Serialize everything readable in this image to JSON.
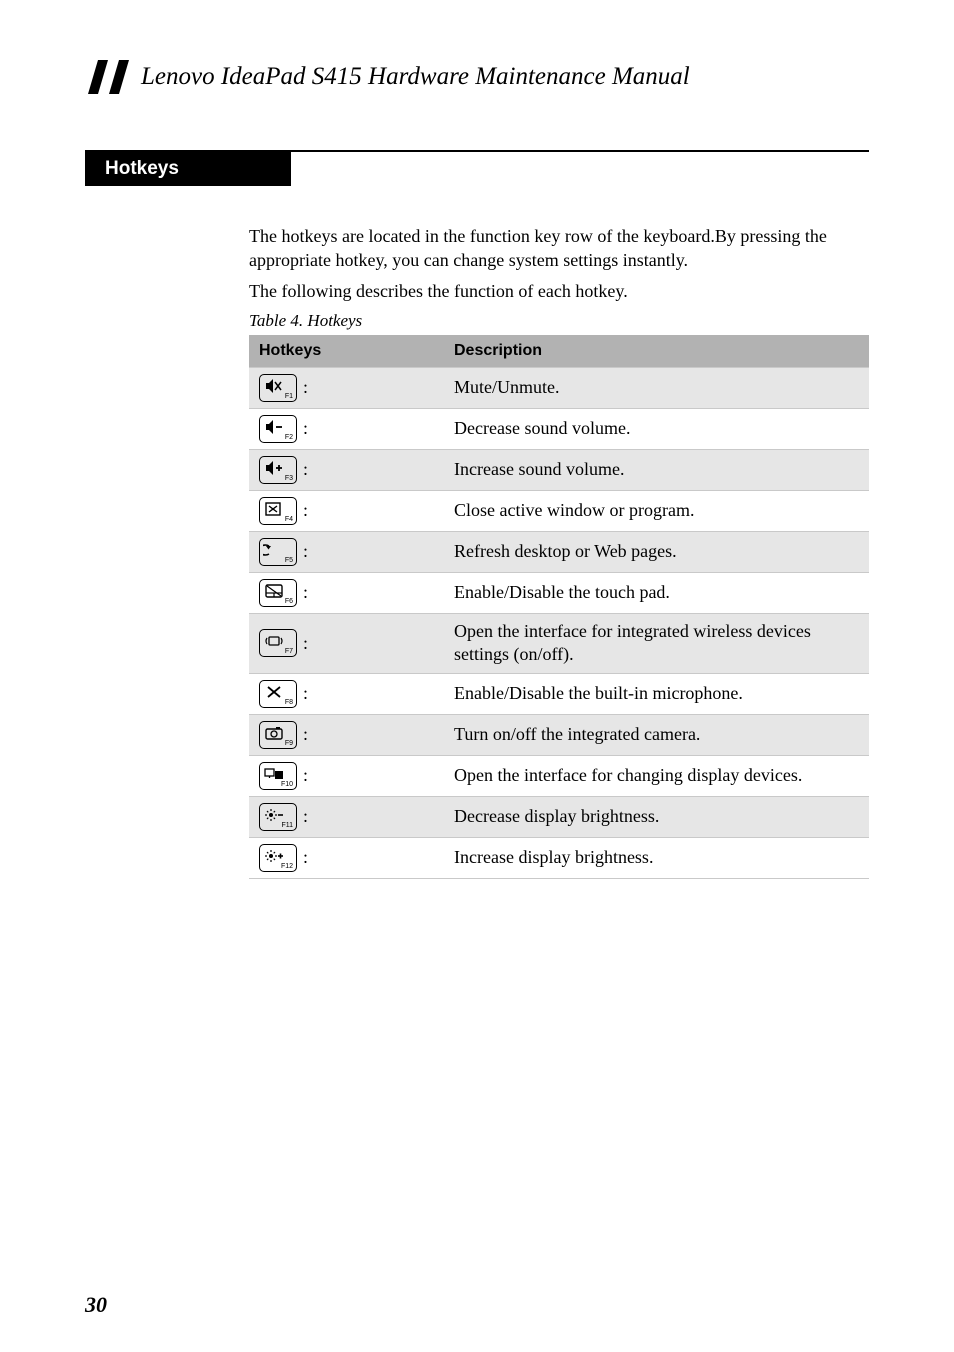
{
  "header": {
    "title": "Lenovo IdeaPad S415 Hardware Maintenance Manual"
  },
  "section": {
    "title": "Hotkeys"
  },
  "intro": {
    "p1": "The hotkeys are located in the function key row of the keyboard.By pressing the appropriate hotkey, you can change system settings instantly.",
    "p2": "The following describes the function of each hotkey.",
    "caption": "Table 4. Hotkeys"
  },
  "table": {
    "columns": {
      "c0": "Hotkeys",
      "c1": "Description"
    },
    "header_bg": "#b2b2b2",
    "row_bg_odd": "#e6e6e6",
    "row_bg_even": "#ffffff",
    "border_color": "#c9c9c9",
    "rows": [
      {
        "fn": "F1",
        "icon": "mute",
        "desc": "Mute/Unmute."
      },
      {
        "fn": "F2",
        "icon": "vol-down",
        "desc": "Decrease sound volume."
      },
      {
        "fn": "F3",
        "icon": "vol-up",
        "desc": "Increase sound volume."
      },
      {
        "fn": "F4",
        "icon": "close-window",
        "desc": "Close active window or program."
      },
      {
        "fn": "F5",
        "icon": "refresh",
        "desc": "Refresh desktop or Web pages."
      },
      {
        "fn": "F6",
        "icon": "touchpad",
        "desc": "Enable/Disable the touch pad."
      },
      {
        "fn": "F7",
        "icon": "wireless",
        "desc": "Open the interface for integrated wireless devices settings (on/off)."
      },
      {
        "fn": "F8",
        "icon": "mic-off",
        "desc": "Enable/Disable the built-in microphone."
      },
      {
        "fn": "F9",
        "icon": "camera",
        "desc": "Turn on/off the integrated camera."
      },
      {
        "fn": "F10",
        "icon": "display",
        "desc": "Open the interface for changing display devices."
      },
      {
        "fn": "F11",
        "icon": "bright-down",
        "desc": "Decrease display brightness."
      },
      {
        "fn": "F12",
        "icon": "bright-up",
        "desc": "Increase display brightness."
      }
    ]
  },
  "page_number": "30"
}
